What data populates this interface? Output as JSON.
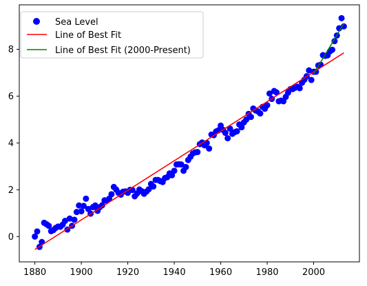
{
  "chart_data": {
    "type": "scatter",
    "title": "",
    "xlabel": "",
    "ylabel": "",
    "xlim": [
      1873.3,
      2019.7
    ],
    "ylim": [
      -1.08,
      9.9
    ],
    "x_ticks": [
      1880,
      1900,
      1920,
      1940,
      1960,
      1980,
      2000
    ],
    "y_ticks": [
      0,
      2,
      4,
      6,
      8
    ],
    "grid": false,
    "legend_position": "top-left",
    "series": [
      {
        "name": "Sea Level",
        "kind": "scatter",
        "color": "#0000ff",
        "points": [
          [
            1880,
            0.0
          ],
          [
            1881,
            0.22
          ],
          [
            1882,
            -0.44
          ],
          [
            1883,
            -0.23
          ],
          [
            1884,
            0.59
          ],
          [
            1885,
            0.53
          ],
          [
            1886,
            0.46
          ],
          [
            1887,
            0.23
          ],
          [
            1888,
            0.28
          ],
          [
            1889,
            0.37
          ],
          [
            1890,
            0.43
          ],
          [
            1891,
            0.42
          ],
          [
            1892,
            0.51
          ],
          [
            1893,
            0.67
          ],
          [
            1894,
            0.3
          ],
          [
            1895,
            0.77
          ],
          [
            1896,
            0.46
          ],
          [
            1897,
            0.72
          ],
          [
            1898,
            1.05
          ],
          [
            1899,
            1.33
          ],
          [
            1900,
            1.08
          ],
          [
            1901,
            1.31
          ],
          [
            1902,
            1.62
          ],
          [
            1903,
            1.18
          ],
          [
            1904,
            0.98
          ],
          [
            1905,
            1.26
          ],
          [
            1906,
            1.33
          ],
          [
            1907,
            1.1
          ],
          [
            1908,
            1.26
          ],
          [
            1909,
            1.34
          ],
          [
            1910,
            1.55
          ],
          [
            1911,
            1.53
          ],
          [
            1912,
            1.62
          ],
          [
            1913,
            1.81
          ],
          [
            1914,
            2.12
          ],
          [
            1915,
            2.01
          ],
          [
            1916,
            1.87
          ],
          [
            1917,
            1.79
          ],
          [
            1918,
            1.92
          ],
          [
            1919,
            1.93
          ],
          [
            1920,
            1.87
          ],
          [
            1921,
            2.0
          ],
          [
            1922,
            1.99
          ],
          [
            1923,
            1.72
          ],
          [
            1924,
            1.84
          ],
          [
            1925,
            2.01
          ],
          [
            1926,
            1.94
          ],
          [
            1927,
            1.83
          ],
          [
            1928,
            1.92
          ],
          [
            1929,
            2.02
          ],
          [
            1930,
            2.25
          ],
          [
            1931,
            2.14
          ],
          [
            1932,
            2.42
          ],
          [
            1933,
            2.42
          ],
          [
            1934,
            2.37
          ],
          [
            1935,
            2.33
          ],
          [
            1936,
            2.5
          ],
          [
            1937,
            2.54
          ],
          [
            1938,
            2.7
          ],
          [
            1939,
            2.62
          ],
          [
            1940,
            2.81
          ],
          [
            1941,
            3.08
          ],
          [
            1942,
            3.09
          ],
          [
            1943,
            3.08
          ],
          [
            1944,
            2.81
          ],
          [
            1945,
            2.97
          ],
          [
            1946,
            3.27
          ],
          [
            1947,
            3.41
          ],
          [
            1948,
            3.55
          ],
          [
            1949,
            3.6
          ],
          [
            1950,
            3.61
          ],
          [
            1951,
            3.95
          ],
          [
            1952,
            4.02
          ],
          [
            1953,
            3.9
          ],
          [
            1954,
            4.0
          ],
          [
            1955,
            3.76
          ],
          [
            1956,
            4.36
          ],
          [
            1957,
            4.33
          ],
          [
            1958,
            4.49
          ],
          [
            1959,
            4.54
          ],
          [
            1960,
            4.74
          ],
          [
            1961,
            4.56
          ],
          [
            1962,
            4.43
          ],
          [
            1963,
            4.2
          ],
          [
            1964,
            4.61
          ],
          [
            1965,
            4.39
          ],
          [
            1966,
            4.46
          ],
          [
            1967,
            4.5
          ],
          [
            1968,
            4.79
          ],
          [
            1969,
            4.67
          ],
          [
            1970,
            4.88
          ],
          [
            1971,
            5.0
          ],
          [
            1972,
            5.24
          ],
          [
            1973,
            5.11
          ],
          [
            1974,
            5.47
          ],
          [
            1975,
            5.39
          ],
          [
            1976,
            5.35
          ],
          [
            1977,
            5.26
          ],
          [
            1978,
            5.54
          ],
          [
            1979,
            5.46
          ],
          [
            1980,
            5.61
          ],
          [
            1981,
            6.11
          ],
          [
            1982,
            5.88
          ],
          [
            1983,
            6.22
          ],
          [
            1984,
            6.16
          ],
          [
            1985,
            5.78
          ],
          [
            1986,
            5.81
          ],
          [
            1987,
            5.78
          ],
          [
            1988,
            5.97
          ],
          [
            1989,
            6.15
          ],
          [
            1990,
            6.3
          ],
          [
            1991,
            6.3
          ],
          [
            1992,
            6.36
          ],
          [
            1993,
            6.4
          ],
          [
            1994,
            6.34
          ],
          [
            1995,
            6.57
          ],
          [
            1996,
            6.7
          ],
          [
            1997,
            6.85
          ],
          [
            1998,
            7.1
          ],
          [
            1999,
            6.69
          ],
          [
            2000,
            7.04
          ],
          [
            2001,
            7.04
          ],
          [
            2002,
            7.31
          ],
          [
            2003,
            7.34
          ],
          [
            2004,
            7.75
          ],
          [
            2005,
            7.72
          ],
          [
            2006,
            7.74
          ],
          [
            2007,
            7.91
          ],
          [
            2008,
            7.98
          ],
          [
            2009,
            8.35
          ],
          [
            2010,
            8.59
          ],
          [
            2011,
            8.9
          ],
          [
            2012,
            9.33
          ],
          [
            2013,
            8.98
          ]
        ]
      },
      {
        "name": "Line of Best Fit",
        "kind": "line",
        "color": "#ff0000",
        "points": [
          [
            1880,
            -0.55
          ],
          [
            2013,
            7.85
          ]
        ]
      },
      {
        "name": "Line of Best Fit (2000-Present)",
        "kind": "line",
        "color": "#008000",
        "points": [
          [
            2000,
            6.95
          ],
          [
            2013,
            9.1
          ]
        ]
      }
    ]
  }
}
